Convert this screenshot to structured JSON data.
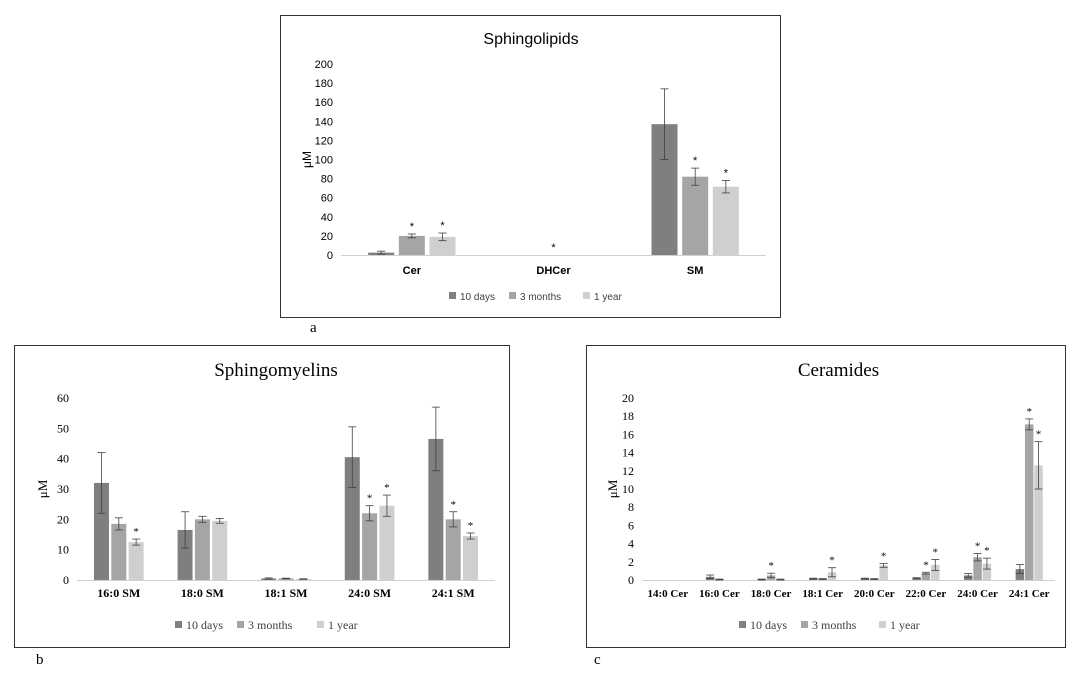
{
  "colors": {
    "10 days": "#7f7f7f",
    "3 months": "#a5a5a5",
    "1 year": "#cfcfcf",
    "axis": "#d0d0d0",
    "error": "#404040"
  },
  "panel_letters": [
    "a",
    "b",
    "c"
  ],
  "chart_data": [
    {
      "type": "bar",
      "title": "Sphingolipids",
      "ylabel": "μM",
      "xlabel": "",
      "ylim": [
        0,
        200
      ],
      "yticks": [
        "0",
        "20",
        "40",
        "60",
        "80",
        "100",
        "120",
        "140",
        "160",
        "180",
        "200"
      ],
      "legend_position": "bottom",
      "categories": [
        "Cer",
        "DHCer",
        "SM"
      ],
      "series": [
        {
          "name": "10 days",
          "values": [
            2.5,
            0,
            137
          ],
          "errors": [
            1.5,
            0,
            37
          ],
          "sig": [
            false,
            false,
            false
          ]
        },
        {
          "name": "3 months",
          "values": [
            20,
            0,
            82
          ],
          "errors": [
            2,
            0,
            9
          ],
          "sig": [
            true,
            true,
            true
          ]
        },
        {
          "name": "1 year",
          "values": [
            19,
            0,
            71.5
          ],
          "errors": [
            4,
            0,
            6.5
          ],
          "sig": [
            true,
            false,
            true
          ]
        }
      ]
    },
    {
      "type": "bar",
      "title": "Sphingomyelins",
      "ylabel": "μM",
      "xlabel": "",
      "ylim": [
        0,
        60
      ],
      "yticks": [
        "0",
        "10",
        "20",
        "30",
        "40",
        "50",
        "60"
      ],
      "legend_position": "bottom",
      "categories": [
        "16:0 SM",
        "18:0 SM",
        "18:1 SM",
        "24:0 SM",
        "24:1 SM"
      ],
      "series": [
        {
          "name": "10 days",
          "values": [
            32,
            16.5,
            0.5,
            40.5,
            46.5
          ],
          "errors": [
            10,
            6,
            0.2,
            10,
            10.5
          ],
          "sig": [
            false,
            false,
            false,
            false,
            false
          ]
        },
        {
          "name": "3 months",
          "values": [
            18.5,
            20,
            0.5,
            22,
            20
          ],
          "errors": [
            2,
            1,
            0.1,
            2.5,
            2.5
          ],
          "sig": [
            false,
            false,
            false,
            true,
            true
          ]
        },
        {
          "name": "1 year",
          "values": [
            12.5,
            19.5,
            0.3,
            24.5,
            14.5
          ],
          "errors": [
            1,
            0.8,
            0.1,
            3.5,
            1
          ],
          "sig": [
            true,
            false,
            false,
            true,
            true
          ]
        }
      ]
    },
    {
      "type": "bar",
      "title": "Ceramides",
      "ylabel": "μM",
      "xlabel": "",
      "ylim": [
        0,
        20
      ],
      "yticks": [
        "0",
        "2",
        "4",
        "6",
        "8",
        "10",
        "12",
        "14",
        "16",
        "18",
        "20"
      ],
      "legend_position": "bottom",
      "categories": [
        "14:0 Cer",
        "16:0 Cer",
        "18:0 Cer",
        "18:1 Cer",
        "20:0 Cer",
        "22:0 Cer",
        "24:0 Cer",
        "24:1 Cer"
      ],
      "series": [
        {
          "name": "10 days",
          "values": [
            0,
            0.35,
            0.05,
            0.15,
            0.15,
            0.2,
            0.5,
            1.2
          ],
          "errors": [
            0,
            0.2,
            0.05,
            0.05,
            0.05,
            0.05,
            0.2,
            0.5
          ],
          "sig": [
            false,
            false,
            false,
            false,
            false,
            false,
            false,
            false
          ]
        },
        {
          "name": "3 months",
          "values": [
            0,
            0.05,
            0.5,
            0.1,
            0.1,
            0.75,
            2.5,
            17.1
          ],
          "errors": [
            0,
            0.05,
            0.25,
            0.05,
            0.05,
            0.1,
            0.4,
            0.6
          ],
          "sig": [
            false,
            false,
            true,
            false,
            false,
            true,
            true,
            true
          ]
        },
        {
          "name": "1 year",
          "values": [
            0,
            0,
            0.05,
            0.85,
            1.6,
            1.65,
            1.8,
            12.6
          ],
          "errors": [
            0,
            0,
            0.05,
            0.5,
            0.2,
            0.6,
            0.6,
            2.6
          ],
          "sig": [
            false,
            false,
            false,
            true,
            true,
            true,
            true,
            true
          ]
        }
      ]
    }
  ]
}
